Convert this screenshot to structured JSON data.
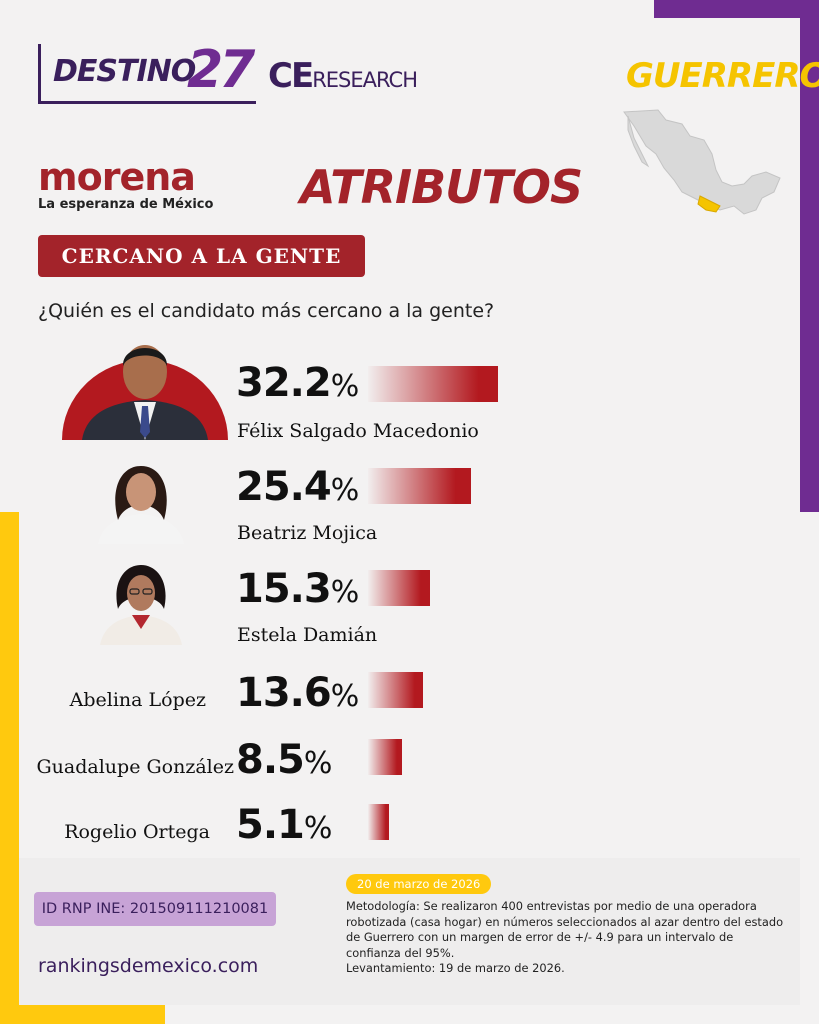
{
  "header": {
    "logo_destino": "DESTINO",
    "logo_destino_num": "27",
    "logo_ce": "CE",
    "logo_research": "RESEARCH",
    "state": "GUERRERO"
  },
  "party": {
    "name": "morena",
    "tagline": "La esperanza de México"
  },
  "section_title": "ATRIBUTOS",
  "category": "CERCANO A LA GENTE",
  "question": "¿Quién es el candidato más cercano a la gente?",
  "chart_data": {
    "type": "bar",
    "orientation": "horizontal",
    "title": "¿Quién es el candidato más cercano a la gente?",
    "categories": [
      "Félix Salgado Macedonio",
      "Beatriz Mojica",
      "Estela Damián",
      "Abelina López",
      "Guadalupe González",
      "Rogelio Ortega"
    ],
    "values": [
      32.2,
      25.4,
      15.3,
      13.6,
      8.5,
      5.1
    ],
    "value_labels": [
      "32.2",
      "25.4",
      "15.3",
      "13.6",
      "8.5",
      "5.1"
    ],
    "unit": "%",
    "bar_color": "#b3191f",
    "grid": false,
    "legend": "none"
  },
  "colors": {
    "purple": "#6f2c91",
    "yellow": "#ffc90e",
    "red": "#a3232a"
  },
  "footer": {
    "rnp": "ID RNP INE: 201509111210081",
    "site": "rankingsdemexico.com",
    "date": "20 de marzo de 2026",
    "methodology": "Metodología: Se realizaron 400 entrevistas por medio de una operadora robotizada (casa hogar) en números seleccionados al azar dentro del estado de Guerrero con un margen de error de +/- 4.9 para un intervalo de confianza del 95%.",
    "fieldwork": "Levantamiento: 19 de marzo de 2026."
  }
}
